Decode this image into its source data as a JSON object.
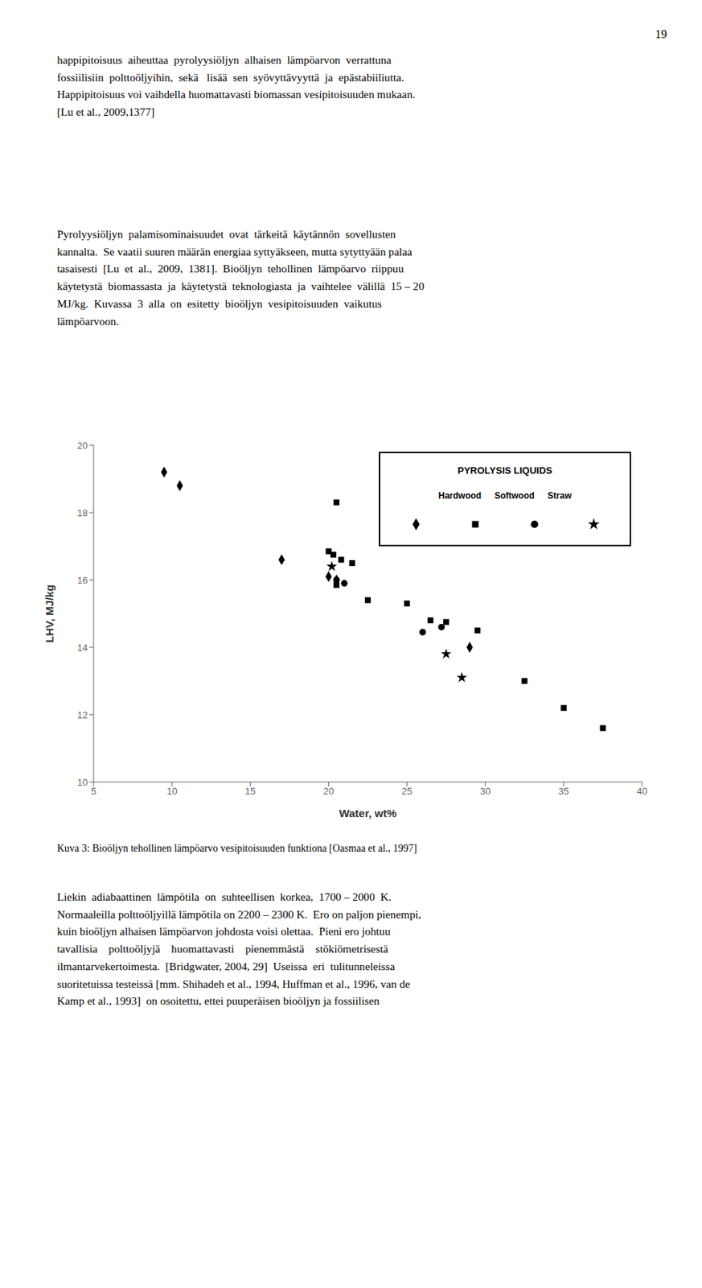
{
  "page_number": "19",
  "text_blocks": [
    "happipitoisuus  aiheuttaa  pyrolyysiöljyn  alhaisen  lämpöarvon  verrattuna\nfossiilisiin  polttoöljyihin,  sekä   lisää  sen  syövyttävyyttä  ja  epästabiiliutta.\nHappipitoisuus voi vaihdella huomattavasti biomassan vesipitoisuuden mukaan.\n[Lu et al., 2009,1377]",
    "Pyrolyysiöljyn  palamisominaisuudet  ovat  tärkeitä  käytännön  sovellusten\nkannalta.  Se vaatii suuren määrän energiaa syttyäkseen, mutta sytyttyään palaa\ntasaisesti  [Lu  et  al.,  2009,  1381].  Bioöljyn  tehollinen  lämpöarvo  riippuu\nkäytetystä  biomassasta  ja  käytetystä  teknologiasta  ja  vaihtelee  välillä  15 – 20\nMJ/kg.  Kuvassa  3  alla  on  esitetty  bioöljyn  vesipitoisuuden  vaikutus\nlämpöarvoon."
  ],
  "caption": "Kuva 3: Bioöljyn tehollinen lämpöarvo vesipitoisuuden funktiona [Oasmaa et al., 1997]",
  "text_after": [
    "Liekin  adiabaattinen  lämpötila  on  suhteellisen  korkea,  1700 – 2000  K.\nNormaaleilla polttoöljyillä lämpötila on 2200 – 2300 K.  Ero on paljon pienempi,\nkuin bioöljyn alhaisen lämpöarvon johdosta voisi olettaa.  Pieni ero johtuu\ntavallisia    polttoöljyjä    huomattavasti    pienemmästä    stökiömetrisestä\nilmantarvekertoimesta.  [Bridgwater, 2004, 29]  Useissa  eri  tulitunneleissa\nsuoritetuissa testeissä [mm. Shihadeh et al., 1994, Huffman et al., 1996, van de\nKamp et al., 1993]  on osoitettu, ettei puuperäisen bioöljyn ja fossiilisen"
  ],
  "chart_data": {
    "type": "scatter",
    "xlabel": "Water, wt%",
    "ylabel": "LHV, MJ/kg",
    "xlim": [
      5,
      40
    ],
    "ylim": [
      10,
      20
    ],
    "xticks": [
      5,
      10,
      15,
      20,
      25,
      30,
      35,
      40
    ],
    "yticks": [
      10,
      12,
      14,
      16,
      18,
      20
    ],
    "grid": false,
    "annotations": [
      "PYROLYSIS LIQUIDS"
    ],
    "series": [
      {
        "name": "Hardwood",
        "marker": "diamond",
        "color": "#000000",
        "x": [
          9.5,
          10.5,
          17.0,
          20.0,
          20.5,
          29.0
        ],
        "values": [
          19.2,
          18.8,
          16.6,
          16.1,
          16.0,
          14.0
        ]
      },
      {
        "name": "Softwood",
        "marker": "square",
        "color": "#000000",
        "x": [
          20.5,
          20.0,
          20.3,
          20.8,
          21.5,
          20.5,
          22.5,
          25.0,
          26.5,
          27.5,
          29.5,
          32.5,
          35.0,
          37.5
        ],
        "values": [
          18.3,
          16.85,
          16.75,
          16.6,
          16.5,
          15.85,
          15.4,
          15.3,
          14.8,
          14.75,
          14.5,
          13.0,
          12.2,
          11.6
        ]
      },
      {
        "marker": "circle",
        "color": "#000000",
        "x": [
          20.5,
          21.0,
          26.0,
          27.2
        ],
        "values": [
          16.0,
          15.9,
          14.45,
          14.6
        ]
      },
      {
        "name": "Straw",
        "marker": "star",
        "color": "#000000",
        "x": [
          20.2,
          27.5,
          28.5
        ],
        "values": [
          16.4,
          13.8,
          13.1
        ]
      }
    ]
  }
}
